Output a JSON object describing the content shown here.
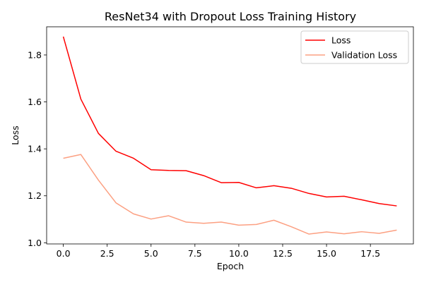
{
  "chart_data": {
    "type": "line",
    "title": "ResNet34 with Dropout Loss Training History",
    "xlabel": "Epoch",
    "ylabel": "Loss",
    "xlim": [
      -0.95,
      19.95
    ],
    "ylim": [
      0.995,
      1.92
    ],
    "xticks": [
      0.0,
      2.5,
      5.0,
      7.5,
      10.0,
      12.5,
      15.0,
      17.5
    ],
    "xtick_labels": [
      "0.0",
      "2.5",
      "5.0",
      "7.5",
      "10.0",
      "12.5",
      "15.0",
      "17.5"
    ],
    "yticks": [
      1.0,
      1.2,
      1.4,
      1.6,
      1.8
    ],
    "ytick_labels": [
      "1.0",
      "1.2",
      "1.4",
      "1.6",
      "1.8"
    ],
    "grid": false,
    "legend_position": "top-right",
    "x": [
      0,
      1,
      2,
      3,
      4,
      5,
      6,
      7,
      8,
      9,
      10,
      11,
      12,
      13,
      14,
      15,
      16,
      17,
      18,
      19
    ],
    "series": [
      {
        "name": "Loss",
        "color": "#ff0000",
        "values": [
          1.878,
          1.612,
          1.466,
          1.39,
          1.36,
          1.311,
          1.308,
          1.307,
          1.286,
          1.256,
          1.257,
          1.234,
          1.243,
          1.232,
          1.21,
          1.195,
          1.198,
          1.183,
          1.167,
          1.157
        ]
      },
      {
        "name": "Validation Loss",
        "color": "#fca082",
        "values": [
          1.36,
          1.376,
          1.267,
          1.17,
          1.123,
          1.101,
          1.115,
          1.088,
          1.083,
          1.088,
          1.075,
          1.078,
          1.096,
          1.068,
          1.037,
          1.046,
          1.038,
          1.047,
          1.04,
          1.054
        ]
      }
    ]
  }
}
